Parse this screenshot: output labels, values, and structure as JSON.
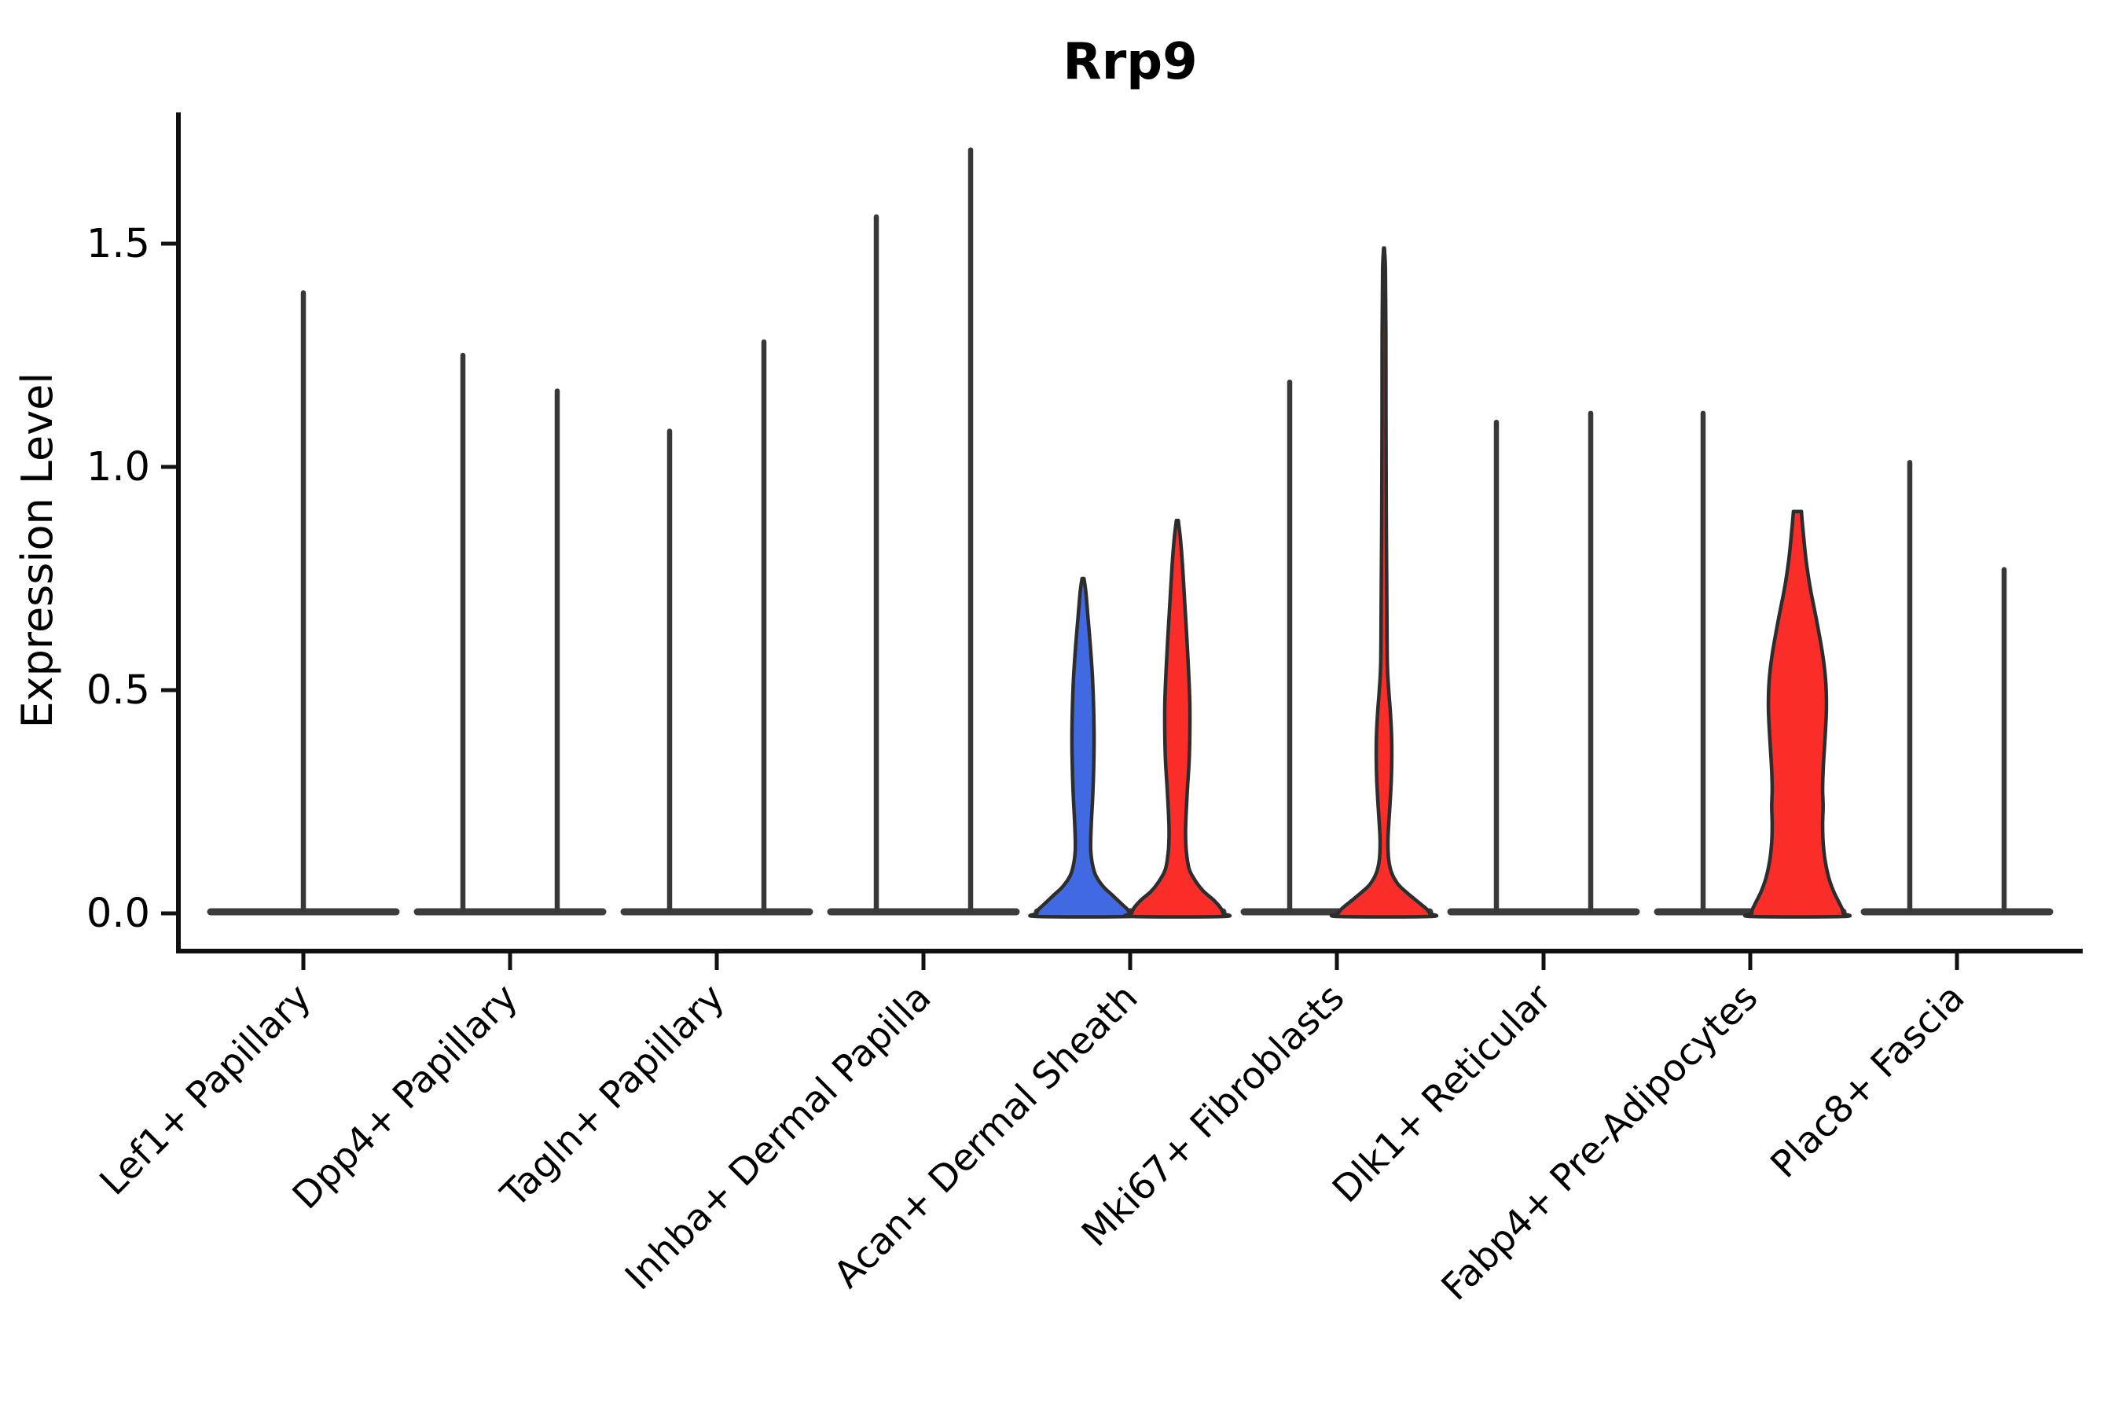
{
  "page": {
    "background": "#ffffff"
  },
  "chart_data": {
    "type": "violin",
    "title": "Rrp9",
    "ylabel": "Expression Level",
    "xlabel": "",
    "legend": "none",
    "grid": false,
    "ylim": [
      -0.085,
      1.79
    ],
    "yticks": [
      0.0,
      0.5,
      1.0,
      1.5
    ],
    "ytick_labels": [
      "0.0",
      "0.5",
      "1.0",
      "1.5"
    ],
    "categories": [
      "Lef1+ Papillary",
      "Dpp4+ Papillary",
      "Tagln+ Papillary",
      "Inhba+ Dermal Papilla",
      "Acan+ Dermal Sheath",
      "Mki67+ Fibroblasts",
      "Dlk1+ Reticular",
      "Fabp4+ Pre-Adipocytes",
      "Plac8+ Fascia"
    ],
    "palette": {
      "blue": "#4169E1",
      "red": "#FA2D28",
      "outline": "#2D2D2D",
      "spike": "#383838",
      "baseline": "#3C3C3C",
      "axis": "#111111",
      "text": "#000000"
    },
    "series": [
      {
        "category": "Lef1+ Papillary",
        "violins": [
          {
            "kind": "spike",
            "pos": "center",
            "peak": 1.39
          }
        ]
      },
      {
        "category": "Dpp4+ Papillary",
        "violins": [
          {
            "kind": "spike",
            "pos": "left",
            "peak": 1.25
          },
          {
            "kind": "spike",
            "pos": "right",
            "peak": 1.17
          }
        ]
      },
      {
        "category": "Tagln+ Papillary",
        "violins": [
          {
            "kind": "spike",
            "pos": "left",
            "peak": 1.08
          },
          {
            "kind": "spike",
            "pos": "right",
            "peak": 1.28
          }
        ]
      },
      {
        "category": "Inhba+ Dermal Papilla",
        "violins": [
          {
            "kind": "spike",
            "pos": "left",
            "peak": 1.56
          },
          {
            "kind": "spike",
            "pos": "right",
            "peak": 1.71
          }
        ]
      },
      {
        "category": "Acan+ Dermal Sheath",
        "violins": [
          {
            "kind": "violin",
            "pos": "left",
            "color": "blue",
            "peak": 0.75,
            "profile": [
              [
                0.75,
                0.02
              ],
              [
                0.72,
                0.06
              ],
              [
                0.67,
                0.1
              ],
              [
                0.6,
                0.155
              ],
              [
                0.53,
                0.2
              ],
              [
                0.46,
                0.225
              ],
              [
                0.39,
                0.235
              ],
              [
                0.32,
                0.225
              ],
              [
                0.26,
                0.205
              ],
              [
                0.21,
                0.18
              ],
              [
                0.17,
                0.165
              ],
              [
                0.14,
                0.165
              ],
              [
                0.11,
                0.2
              ],
              [
                0.085,
                0.27
              ],
              [
                0.06,
                0.43
              ],
              [
                0.04,
                0.63
              ],
              [
                0.02,
                0.83
              ],
              [
                0.008,
                0.95
              ],
              [
                0.0,
                0.98
              ]
            ]
          },
          {
            "kind": "violin",
            "pos": "right",
            "color": "red",
            "peak": 0.88,
            "profile": [
              [
                0.88,
                0.02
              ],
              [
                0.84,
                0.065
              ],
              [
                0.78,
                0.11
              ],
              [
                0.7,
                0.155
              ],
              [
                0.62,
                0.2
              ],
              [
                0.54,
                0.24
              ],
              [
                0.47,
                0.265
              ],
              [
                0.4,
                0.265
              ],
              [
                0.34,
                0.25
              ],
              [
                0.28,
                0.215
              ],
              [
                0.22,
                0.185
              ],
              [
                0.18,
                0.175
              ],
              [
                0.14,
                0.19
              ],
              [
                0.1,
                0.25
              ],
              [
                0.075,
                0.37
              ],
              [
                0.05,
                0.55
              ],
              [
                0.03,
                0.77
              ],
              [
                0.012,
                0.92
              ],
              [
                0.0,
                0.97
              ]
            ]
          }
        ]
      },
      {
        "category": "Mki67+ Fibroblasts",
        "violins": [
          {
            "kind": "spike",
            "pos": "left",
            "peak": 1.19
          },
          {
            "kind": "violin",
            "pos": "right",
            "color": "red",
            "peak": 1.49,
            "profile": [
              [
                1.49,
                0.008
              ],
              [
                1.44,
                0.03
              ],
              [
                1.3,
                0.04
              ],
              [
                1.1,
                0.042
              ],
              [
                0.9,
                0.048
              ],
              [
                0.7,
                0.06
              ],
              [
                0.56,
                0.07
              ],
              [
                0.5,
                0.1
              ],
              [
                0.45,
                0.135
              ],
              [
                0.4,
                0.16
              ],
              [
                0.35,
                0.165
              ],
              [
                0.3,
                0.155
              ],
              [
                0.25,
                0.13
              ],
              [
                0.2,
                0.1
              ],
              [
                0.16,
                0.083
              ],
              [
                0.12,
                0.1
              ],
              [
                0.09,
                0.165
              ],
              [
                0.065,
                0.3
              ],
              [
                0.045,
                0.5
              ],
              [
                0.025,
                0.73
              ],
              [
                0.01,
                0.9
              ],
              [
                0.0,
                0.97
              ]
            ]
          }
        ]
      },
      {
        "category": "Dlk1+ Reticular",
        "violins": [
          {
            "kind": "spike",
            "pos": "left",
            "peak": 1.1
          },
          {
            "kind": "spike",
            "pos": "right",
            "peak": 1.12
          }
        ]
      },
      {
        "category": "Fabp4+ Pre-Adipocytes",
        "violins": [
          {
            "kind": "spike",
            "pos": "left",
            "peak": 1.12
          },
          {
            "kind": "violin",
            "pos": "right",
            "color": "red",
            "peak": 0.9,
            "profile": [
              [
                0.9,
                0.085
              ],
              [
                0.88,
                0.1
              ],
              [
                0.84,
                0.135
              ],
              [
                0.79,
                0.185
              ],
              [
                0.73,
                0.27
              ],
              [
                0.66,
                0.4
              ],
              [
                0.58,
                0.535
              ],
              [
                0.52,
                0.6
              ],
              [
                0.46,
                0.615
              ],
              [
                0.4,
                0.59
              ],
              [
                0.33,
                0.55
              ],
              [
                0.28,
                0.535
              ],
              [
                0.24,
                0.545
              ],
              [
                0.2,
                0.535
              ],
              [
                0.16,
                0.545
              ],
              [
                0.12,
                0.585
              ],
              [
                0.08,
                0.665
              ],
              [
                0.05,
                0.765
              ],
              [
                0.025,
                0.88
              ],
              [
                0.01,
                0.95
              ],
              [
                0.0,
                0.97
              ]
            ]
          }
        ]
      },
      {
        "category": "Plac8+ Fascia",
        "violins": [
          {
            "kind": "spike",
            "pos": "left",
            "peak": 1.01
          },
          {
            "kind": "spike",
            "pos": "right",
            "peak": 0.77
          }
        ]
      }
    ]
  }
}
